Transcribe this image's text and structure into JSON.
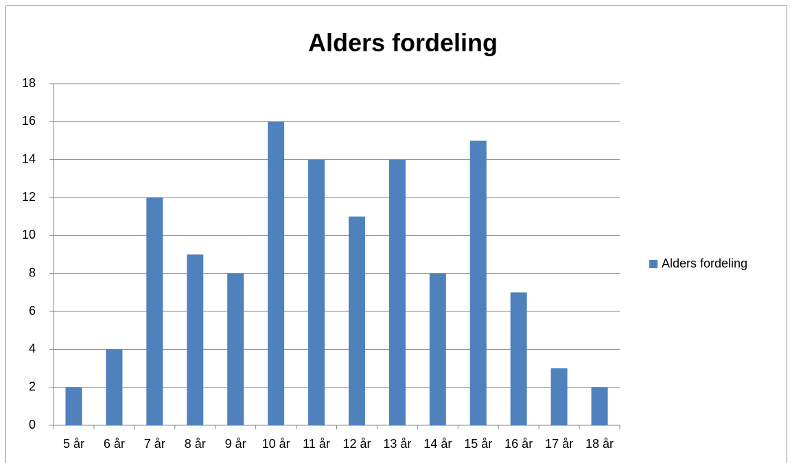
{
  "chart_data": {
    "type": "bar",
    "title": "Alders fordeling",
    "categories": [
      "5 år",
      "6 år",
      "7 år",
      "8 år",
      "9 år",
      "10 år",
      "11 år",
      "12 år",
      "13 år",
      "14 år",
      "15 år",
      "16 år",
      "17 år",
      "18 år"
    ],
    "series": [
      {
        "name": "Alders fordeling",
        "color": "#4f81bd",
        "values": [
          2,
          4,
          12,
          9,
          8,
          16,
          14,
          11,
          14,
          8,
          15,
          7,
          3,
          2
        ]
      }
    ],
    "ylim": [
      0,
      18
    ],
    "yticks": [
      0,
      2,
      4,
      6,
      8,
      10,
      12,
      14,
      16,
      18
    ],
    "grid": true,
    "legend": "right"
  }
}
